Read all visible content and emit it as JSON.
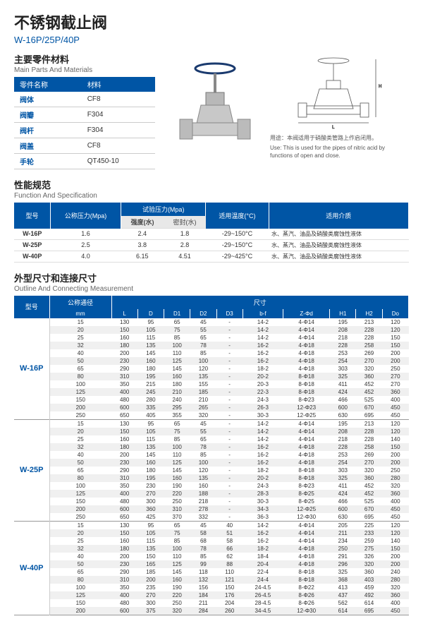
{
  "title_cn": "不锈钢截止阀",
  "title_en": "W-16P/25P/40P",
  "parts": {
    "hdr_cn": "主要零件材料",
    "hdr_en": "Main Parts And Materials",
    "col1": "零件名称",
    "col2": "材料",
    "rows": [
      [
        "阀体",
        "CF8"
      ],
      [
        "阀瓣",
        "F304"
      ],
      [
        "阀杆",
        "F304"
      ],
      [
        "阀盖",
        "CF8"
      ],
      [
        "手轮",
        "QT450-10"
      ]
    ]
  },
  "use": {
    "cn": "用途：本阀适用于硝酸类管路上作启闭用。",
    "en": "Use: This is used for the pipes of nitric acid by functions of open and close."
  },
  "spec": {
    "hdr_cn": "性能规范",
    "hdr_en": "Function And Specification",
    "h": [
      "型号",
      "公称压力(Mpa)",
      "试验压力(Mpa)",
      "适用温度(°C)",
      "适用介质"
    ],
    "sub": [
      "强度(水)",
      "密封(水)"
    ],
    "rows": [
      [
        "W-16P",
        "1.6",
        "2.4",
        "1.8",
        "-29~150°C",
        "水、蒸汽、油品及硝酸类腐蚀性液体"
      ],
      [
        "W-25P",
        "2.5",
        "3.8",
        "2.8",
        "-29~150°C",
        "水、蒸汽、油品及硝酸类腐蚀性液体"
      ],
      [
        "W-40P",
        "4.0",
        "6.15",
        "4.51",
        "-29~425°C",
        "水、蒸汽、油品及硝酸类腐蚀性液体"
      ]
    ]
  },
  "dim": {
    "hdr_cn": "外型尺寸和连接尺寸",
    "hdr_en": "Outline And Connecting Measurement",
    "h1": [
      "型号",
      "公称通径",
      "尺寸"
    ],
    "h2": [
      "mm",
      "L",
      "D",
      "D1",
      "D2",
      "D3",
      "b-f",
      "Z-Φd",
      "H1",
      "H2",
      "Do"
    ],
    "groups": [
      {
        "model": "W-16P",
        "rows": [
          [
            "15",
            "130",
            "95",
            "65",
            "45",
            "-",
            "14-2",
            "4-Φ14",
            "195",
            "213",
            "120"
          ],
          [
            "20",
            "150",
            "105",
            "75",
            "55",
            "-",
            "14-2",
            "4-Φ14",
            "208",
            "228",
            "120"
          ],
          [
            "25",
            "160",
            "115",
            "85",
            "65",
            "-",
            "14-2",
            "4-Φ14",
            "218",
            "228",
            "150"
          ],
          [
            "32",
            "180",
            "135",
            "100",
            "78",
            "-",
            "16-2",
            "4-Φ18",
            "228",
            "258",
            "150"
          ],
          [
            "40",
            "200",
            "145",
            "110",
            "85",
            "-",
            "16-2",
            "4-Φ18",
            "253",
            "269",
            "200"
          ],
          [
            "50",
            "230",
            "160",
            "125",
            "100",
            "-",
            "16-2",
            "4-Φ18",
            "254",
            "270",
            "200"
          ],
          [
            "65",
            "290",
            "180",
            "145",
            "120",
            "-",
            "18-2",
            "4-Φ18",
            "303",
            "320",
            "250"
          ],
          [
            "80",
            "310",
            "195",
            "160",
            "135",
            "-",
            "20-2",
            "8-Φ18",
            "325",
            "360",
            "270"
          ],
          [
            "100",
            "350",
            "215",
            "180",
            "155",
            "-",
            "20-3",
            "8-Φ18",
            "411",
            "452",
            "270"
          ],
          [
            "125",
            "400",
            "245",
            "210",
            "185",
            "-",
            "22-3",
            "8-Φ18",
            "424",
            "452",
            "360"
          ],
          [
            "150",
            "480",
            "280",
            "240",
            "210",
            "-",
            "24-3",
            "8-Φ23",
            "466",
            "525",
            "400"
          ],
          [
            "200",
            "600",
            "335",
            "295",
            "265",
            "-",
            "26-3",
            "12-Φ23",
            "600",
            "670",
            "450"
          ],
          [
            "250",
            "650",
            "405",
            "355",
            "320",
            "-",
            "30-3",
            "12-Φ25",
            "630",
            "695",
            "450"
          ]
        ]
      },
      {
        "model": "W-25P",
        "rows": [
          [
            "15",
            "130",
            "95",
            "65",
            "45",
            "-",
            "14-2",
            "4-Φ14",
            "195",
            "213",
            "120"
          ],
          [
            "20",
            "150",
            "105",
            "75",
            "55",
            "-",
            "14-2",
            "4-Φ14",
            "208",
            "228",
            "120"
          ],
          [
            "25",
            "160",
            "115",
            "85",
            "65",
            "-",
            "14-2",
            "4-Φ14",
            "218",
            "228",
            "140"
          ],
          [
            "32",
            "180",
            "135",
            "100",
            "78",
            "-",
            "16-2",
            "4-Φ18",
            "228",
            "258",
            "150"
          ],
          [
            "40",
            "200",
            "145",
            "110",
            "85",
            "-",
            "16-2",
            "4-Φ18",
            "253",
            "269",
            "200"
          ],
          [
            "50",
            "230",
            "160",
            "125",
            "100",
            "-",
            "16-2",
            "4-Φ18",
            "254",
            "270",
            "200"
          ],
          [
            "65",
            "290",
            "180",
            "145",
            "120",
            "-",
            "18-2",
            "8-Φ18",
            "303",
            "320",
            "250"
          ],
          [
            "80",
            "310",
            "195",
            "160",
            "135",
            "-",
            "20-2",
            "8-Φ18",
            "325",
            "360",
            "280"
          ],
          [
            "100",
            "350",
            "230",
            "190",
            "160",
            "-",
            "24-3",
            "8-Φ23",
            "411",
            "452",
            "320"
          ],
          [
            "125",
            "400",
            "270",
            "220",
            "188",
            "-",
            "28-3",
            "8-Φ25",
            "424",
            "452",
            "360"
          ],
          [
            "150",
            "480",
            "300",
            "250",
            "218",
            "-",
            "30-3",
            "8-Φ25",
            "466",
            "525",
            "400"
          ],
          [
            "200",
            "600",
            "360",
            "310",
            "278",
            "-",
            "34-3",
            "12-Φ25",
            "600",
            "670",
            "450"
          ],
          [
            "250",
            "650",
            "425",
            "370",
            "332",
            "-",
            "36-3",
            "12-Φ30",
            "630",
            "695",
            "450"
          ]
        ]
      },
      {
        "model": "W-40P",
        "rows": [
          [
            "15",
            "130",
            "95",
            "65",
            "45",
            "40",
            "14-2",
            "4-Φ14",
            "205",
            "225",
            "120"
          ],
          [
            "20",
            "150",
            "105",
            "75",
            "58",
            "51",
            "16-2",
            "4-Φ14",
            "211",
            "233",
            "120"
          ],
          [
            "25",
            "160",
            "115",
            "85",
            "68",
            "58",
            "16-2",
            "4-Φ14",
            "234",
            "259",
            "140"
          ],
          [
            "32",
            "180",
            "135",
            "100",
            "78",
            "66",
            "18-2",
            "4-Φ18",
            "250",
            "275",
            "150"
          ],
          [
            "40",
            "200",
            "150",
            "110",
            "85",
            "62",
            "18-4",
            "4-Φ18",
            "291",
            "326",
            "200"
          ],
          [
            "50",
            "230",
            "165",
            "125",
            "99",
            "88",
            "20-4",
            "4-Φ18",
            "296",
            "320",
            "200"
          ],
          [
            "65",
            "290",
            "185",
            "145",
            "118",
            "110",
            "22-4",
            "8-Φ18",
            "325",
            "360",
            "240"
          ],
          [
            "80",
            "310",
            "200",
            "160",
            "132",
            "121",
            "24-4",
            "8-Φ18",
            "368",
            "403",
            "280"
          ],
          [
            "100",
            "350",
            "235",
            "190",
            "156",
            "150",
            "24-4.5",
            "8-Φ22",
            "413",
            "459",
            "320"
          ],
          [
            "125",
            "400",
            "270",
            "220",
            "184",
            "176",
            "26-4.5",
            "8-Φ26",
            "437",
            "492",
            "360"
          ],
          [
            "150",
            "480",
            "300",
            "250",
            "211",
            "204",
            "28-4.5",
            "8-Φ26",
            "562",
            "614",
            "400"
          ],
          [
            "200",
            "600",
            "375",
            "320",
            "284",
            "260",
            "34-4.5",
            "12-Φ30",
            "614",
            "695",
            "450"
          ]
        ]
      }
    ]
  }
}
